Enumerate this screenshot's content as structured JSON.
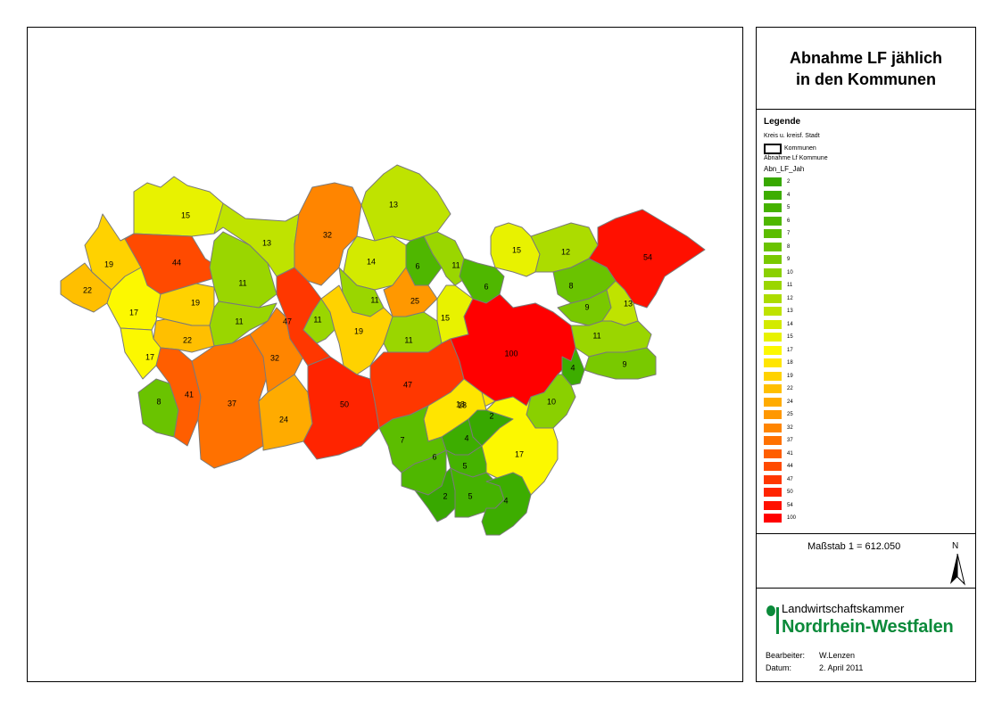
{
  "title": {
    "line1": "Abnahme LF jählich",
    "line2": "in den Kommunen"
  },
  "legend": {
    "heading": "Legende",
    "sub1": "Kreis u. kreisf. Stadt",
    "kommune_label": "Kommunen",
    "sub2": "Abnahme Lf Kommune",
    "field": "Abn_LF_Jah",
    "entries": [
      {
        "label": "2",
        "color": "#38a800"
      },
      {
        "label": "4",
        "color": "#3dad00"
      },
      {
        "label": "5",
        "color": "#45b200"
      },
      {
        "label": "6",
        "color": "#4fb700"
      },
      {
        "label": "7",
        "color": "#5cbd00"
      },
      {
        "label": "8",
        "color": "#6ac300"
      },
      {
        "label": "9",
        "color": "#79c900"
      },
      {
        "label": "10",
        "color": "#8ad000"
      },
      {
        "label": "11",
        "color": "#9ad600"
      },
      {
        "label": "12",
        "color": "#acdc00"
      },
      {
        "label": "13",
        "color": "#bfe300"
      },
      {
        "label": "14",
        "color": "#d3ea00"
      },
      {
        "label": "15",
        "color": "#e8f200"
      },
      {
        "label": "17",
        "color": "#fcf800"
      },
      {
        "label": "18",
        "color": "#ffe500"
      },
      {
        "label": "19",
        "color": "#ffd200"
      },
      {
        "label": "22",
        "color": "#ffbf00"
      },
      {
        "label": "24",
        "color": "#ffab00"
      },
      {
        "label": "25",
        "color": "#ff9800"
      },
      {
        "label": "32",
        "color": "#ff8500"
      },
      {
        "label": "37",
        "color": "#ff7100"
      },
      {
        "label": "41",
        "color": "#ff5e00"
      },
      {
        "label": "44",
        "color": "#ff4a00"
      },
      {
        "label": "47",
        "color": "#ff3700"
      },
      {
        "label": "50",
        "color": "#ff2400"
      },
      {
        "label": "54",
        "color": "#ff1000"
      },
      {
        "label": "100",
        "color": "#ff0000"
      }
    ]
  },
  "scale": {
    "text": "Maßstab  1 = 612.050",
    "north": "N"
  },
  "logo": {
    "line1": "Landwirtschaftskammer",
    "line2": "Nordrhein-Westfalen"
  },
  "meta": {
    "author_label": "Bearbeiter:",
    "author": "W.Lenzen",
    "date_label": "Datum:",
    "date": "2. April 2011"
  },
  "municipalities": [
    {
      "value": "15",
      "color": "#e8f200"
    },
    {
      "value": "19",
      "color": "#ffd200"
    },
    {
      "value": "22",
      "color": "#ffbf00"
    },
    {
      "value": "44",
      "color": "#ff4a00"
    },
    {
      "value": "17",
      "color": "#fcf800"
    },
    {
      "value": "19",
      "color": "#ffd200"
    },
    {
      "value": "11",
      "color": "#9ad600"
    },
    {
      "value": "13",
      "color": "#bfe300"
    },
    {
      "value": "11",
      "color": "#9ad600"
    },
    {
      "value": "22",
      "color": "#ffbf00"
    },
    {
      "value": "17",
      "color": "#fcf800"
    },
    {
      "value": "8",
      "color": "#6ac300"
    },
    {
      "value": "41",
      "color": "#ff5e00"
    },
    {
      "value": "37",
      "color": "#ff7100"
    },
    {
      "value": "32",
      "color": "#ff8500"
    },
    {
      "value": "24",
      "color": "#ffab00"
    },
    {
      "value": "47",
      "color": "#ff3700"
    },
    {
      "value": "32",
      "color": "#ff8500"
    },
    {
      "value": "13",
      "color": "#bfe300"
    },
    {
      "value": "14",
      "color": "#d3ea00"
    },
    {
      "value": "6",
      "color": "#4fb700"
    },
    {
      "value": "11",
      "color": "#9ad600"
    },
    {
      "value": "6",
      "color": "#4fb700"
    },
    {
      "value": "11",
      "color": "#9ad600"
    },
    {
      "value": "11",
      "color": "#9ad600"
    },
    {
      "value": "25",
      "color": "#ff9800"
    },
    {
      "value": "19",
      "color": "#ffd200"
    },
    {
      "value": "11",
      "color": "#9ad600"
    },
    {
      "value": "15",
      "color": "#e8f200"
    },
    {
      "value": "50",
      "color": "#ff2400"
    },
    {
      "value": "47",
      "color": "#ff3700"
    },
    {
      "value": "100",
      "color": "#ff0000"
    },
    {
      "value": "18",
      "color": "#ffe500"
    },
    {
      "value": "15",
      "color": "#e8f200"
    },
    {
      "value": "12",
      "color": "#acdc00"
    },
    {
      "value": "54",
      "color": "#ff1000"
    },
    {
      "value": "8",
      "color": "#6ac300"
    },
    {
      "value": "9",
      "color": "#79c900"
    },
    {
      "value": "13",
      "color": "#bfe300"
    },
    {
      "value": "11",
      "color": "#9ad600"
    },
    {
      "value": "9",
      "color": "#79c900"
    },
    {
      "value": "4",
      "color": "#3dad00"
    },
    {
      "value": "10",
      "color": "#8ad000"
    },
    {
      "value": "18",
      "color": "#ffe500"
    },
    {
      "value": "2",
      "color": "#38a800"
    },
    {
      "value": "4",
      "color": "#3dad00"
    },
    {
      "value": "7",
      "color": "#5cbd00"
    },
    {
      "value": "6",
      "color": "#4fb700"
    },
    {
      "value": "5",
      "color": "#45b200"
    },
    {
      "value": "17",
      "color": "#fcf800"
    },
    {
      "value": "2",
      "color": "#38a800"
    },
    {
      "value": "5",
      "color": "#45b200"
    },
    {
      "value": "4",
      "color": "#3dad00"
    }
  ]
}
